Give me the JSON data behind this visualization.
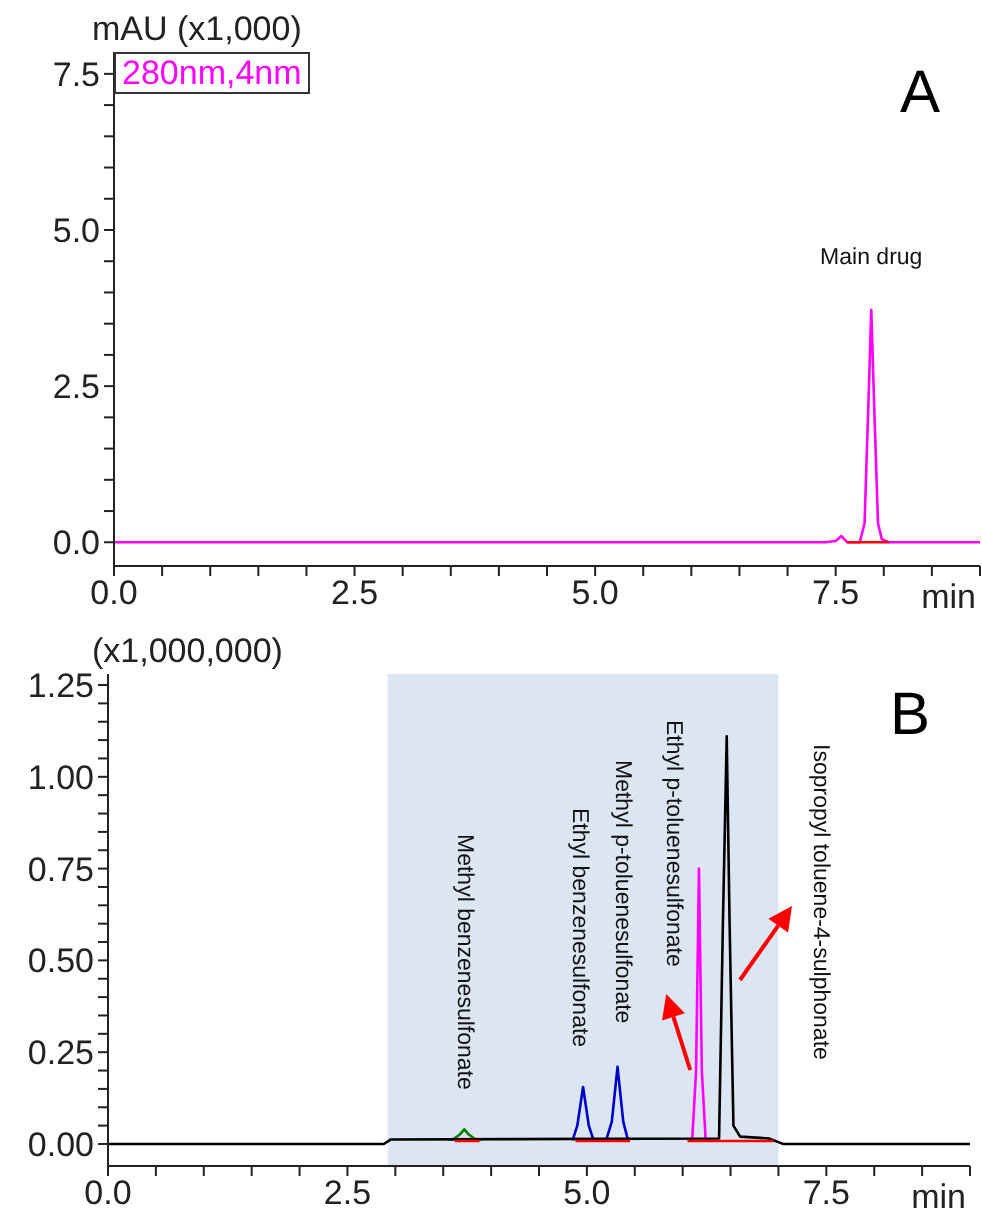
{
  "chart_data": [
    {
      "type": "line",
      "ylabel": "mAU (x1,000)",
      "xlabel": "min",
      "xlim": [
        0,
        9
      ],
      "ylim": [
        -0.38,
        7.85
      ],
      "legend": "top left",
      "xticks": [
        {
          "value": 0,
          "label": "0.0"
        },
        {
          "value": 0.5,
          "label": null
        },
        {
          "value": 1,
          "label": null
        },
        {
          "value": 1.5,
          "label": null
        },
        {
          "value": 2,
          "label": null
        },
        {
          "value": 2.5,
          "label": "2.5"
        },
        {
          "value": 3,
          "label": null
        },
        {
          "value": 3.5,
          "label": null
        },
        {
          "value": 4,
          "label": null
        },
        {
          "value": 4.5,
          "label": null
        },
        {
          "value": 5,
          "label": "5.0"
        },
        {
          "value": 5.5,
          "label": null
        },
        {
          "value": 6,
          "label": null
        },
        {
          "value": 6.5,
          "label": null
        },
        {
          "value": 7,
          "label": null
        },
        {
          "value": 7.5,
          "label": "7.5"
        },
        {
          "value": 8,
          "label": null
        },
        {
          "value": 8.5,
          "label": null
        },
        {
          "value": 9,
          "label": null
        }
      ],
      "yticks": [
        {
          "value": 0,
          "label": "0.0"
        },
        {
          "value": 0.5,
          "label": null
        },
        {
          "value": 1,
          "label": null
        },
        {
          "value": 1.5,
          "label": null
        },
        {
          "value": 2,
          "label": null
        },
        {
          "value": 2.5,
          "label": "2.5"
        },
        {
          "value": 3,
          "label": null
        },
        {
          "value": 3.5,
          "label": null
        },
        {
          "value": 4,
          "label": null
        },
        {
          "value": 4.5,
          "label": null
        },
        {
          "value": 5,
          "label": "5.0"
        },
        {
          "value": 5.5,
          "label": null
        },
        {
          "value": 6,
          "label": null
        },
        {
          "value": 6.5,
          "label": null
        },
        {
          "value": 7,
          "label": null
        },
        {
          "value": 7.5,
          "label": "7.5"
        }
      ],
      "annotations": [
        "A",
        {
          "text": "Main drug",
          "x": 7.87,
          "y": 3.72
        }
      ],
      "series": [
        {
          "name": "280nm,4nm",
          "color": "#ff00ff",
          "x": [
            0,
            7.4,
            7.5,
            7.56,
            7.62,
            7.75,
            7.8,
            7.84,
            7.87,
            7.9,
            7.94,
            7.98,
            8.05,
            9
          ],
          "values": [
            0,
            0,
            0.02,
            0.1,
            0,
            0,
            0.3,
            2.2,
            3.72,
            2.2,
            0.3,
            0.05,
            0,
            0
          ]
        },
        {
          "color": "#ff0000",
          "x": [
            7.62,
            8.05
          ],
          "values": [
            0,
            0
          ]
        }
      ]
    },
    {
      "type": "line",
      "ylabel": "(x1,000,000)",
      "xlabel": "min",
      "xlim": [
        0,
        9
      ],
      "ylim": [
        -0.06,
        1.28
      ],
      "xticks": [
        {
          "value": 0,
          "label": "0.0"
        },
        {
          "value": 0.5,
          "label": null
        },
        {
          "value": 1,
          "label": null
        },
        {
          "value": 1.5,
          "label": null
        },
        {
          "value": 2,
          "label": null
        },
        {
          "value": 2.5,
          "label": "2.5"
        },
        {
          "value": 3,
          "label": null
        },
        {
          "value": 3.5,
          "label": null
        },
        {
          "value": 4,
          "label": null
        },
        {
          "value": 4.5,
          "label": null
        },
        {
          "value": 5,
          "label": "5.0"
        },
        {
          "value": 5.5,
          "label": null
        },
        {
          "value": 6,
          "label": null
        },
        {
          "value": 6.5,
          "label": null
        },
        {
          "value": 7,
          "label": null
        },
        {
          "value": 7.5,
          "label": "7.5"
        },
        {
          "value": 8,
          "label": null
        },
        {
          "value": 8.5,
          "label": null
        },
        {
          "value": 9,
          "label": null
        }
      ],
      "yticks": [
        {
          "value": 0,
          "label": "0.00"
        },
        {
          "value": 0.05,
          "label": null
        },
        {
          "value": 0.1,
          "label": null
        },
        {
          "value": 0.15,
          "label": null
        },
        {
          "value": 0.2,
          "label": null
        },
        {
          "value": 0.25,
          "label": "0.25"
        },
        {
          "value": 0.3,
          "label": null
        },
        {
          "value": 0.35,
          "label": null
        },
        {
          "value": 0.4,
          "label": null
        },
        {
          "value": 0.45,
          "label": null
        },
        {
          "value": 0.5,
          "label": "0.50"
        },
        {
          "value": 0.55,
          "label": null
        },
        {
          "value": 0.6,
          "label": null
        },
        {
          "value": 0.65,
          "label": null
        },
        {
          "value": 0.7,
          "label": null
        },
        {
          "value": 0.75,
          "label": "0.75"
        },
        {
          "value": 0.8,
          "label": null
        },
        {
          "value": 0.85,
          "label": null
        },
        {
          "value": 0.9,
          "label": null
        },
        {
          "value": 0.95,
          "label": null
        },
        {
          "value": 1,
          "label": "1.00"
        },
        {
          "value": 1.05,
          "label": null
        },
        {
          "value": 1.1,
          "label": null
        },
        {
          "value": 1.15,
          "label": null
        },
        {
          "value": 1.2,
          "label": null
        },
        {
          "value": 1.25,
          "label": "1.25"
        }
      ],
      "bands": [
        {
          "axis": "x",
          "from": 2.92,
          "to": 7.0,
          "color": "#dce6f2"
        }
      ],
      "annotations": [
        "B",
        {
          "text": "Methyl benzenesulfonate",
          "x": 3.72,
          "y": 0.04
        },
        {
          "text": "Ethyl  benzenesulfonate",
          "x": 4.96,
          "y": 0.155
        },
        {
          "text": "Methyl p-toluenesulfonate",
          "x": 5.32,
          "y": 0.21
        },
        {
          "text": "Ethyl p-toluenesulfonate",
          "x": 6.17,
          "y": 0.75
        },
        "Isopropyl toluene-4-sulphonate"
      ],
      "series": [
        {
          "color": "#008000",
          "x": [
            3.55,
            3.6,
            3.67,
            3.72,
            3.77,
            3.84,
            3.9
          ],
          "values": [
            0.012,
            0.012,
            0.025,
            0.04,
            0.025,
            0.012,
            0.012
          ]
        },
        {
          "color": "#0000cc",
          "x": [
            4.85,
            4.9,
            4.96,
            5.02,
            5.07,
            5.2,
            5.26,
            5.32,
            5.38,
            5.43
          ],
          "values": [
            0.01,
            0.05,
            0.155,
            0.05,
            0.01,
            0.01,
            0.06,
            0.21,
            0.06,
            0.01
          ]
        },
        {
          "color": "#ff00ff",
          "x": [
            6.08,
            6.1,
            6.14,
            6.17,
            6.2,
            6.24,
            6.3
          ],
          "values": [
            0.012,
            0.012,
            0.2,
            0.75,
            0.2,
            0.012,
            0.012
          ]
        },
        {
          "color": "#000000",
          "x": [
            0,
            2.88,
            2.95,
            6.38,
            6.42,
            6.46,
            6.49,
            6.53,
            6.6,
            6.9,
            7.0,
            7.05,
            9
          ],
          "values": [
            0,
            0,
            0.012,
            0.015,
            0.6,
            1.11,
            0.6,
            0.05,
            0.02,
            0.015,
            0.005,
            0,
            0
          ]
        },
        {
          "color": "#ff0000",
          "x": [
            3.62,
            3.88,
            3.89,
            4.88,
            5.45,
            5.46,
            6.05,
            6.95
          ],
          "values": [
            0.008,
            0.008,
            null,
            0.008,
            0.008,
            null,
            0.008,
            0.008
          ]
        }
      ]
    }
  ]
}
